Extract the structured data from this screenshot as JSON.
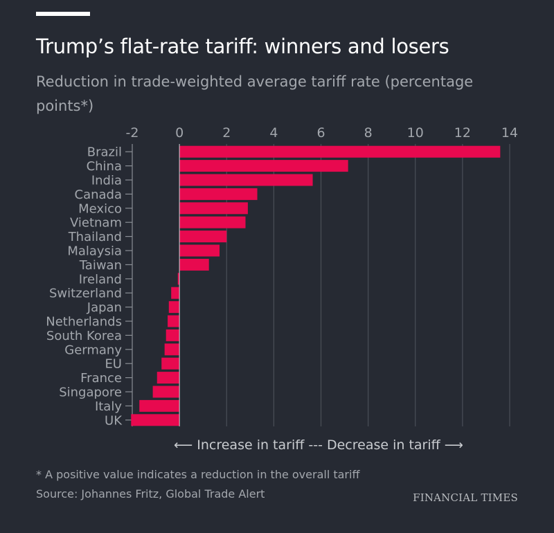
{
  "title": "Trump’s flat-rate tariff: winners and losers",
  "subtitle": "Reduction in trade-weighted average tariff rate (percentage points*)",
  "direction_label": "⟵  Increase in tariff --- Decrease in tariff  ⟶",
  "footnote": "* A positive value indicates a reduction in the overall tariff",
  "source": "Source: Johannes Fritz, Global Trade Alert",
  "logo": "FINANCIAL TIMES",
  "colors": {
    "background": "#262a33",
    "bar": "#e8094f",
    "text": "#a3a7ad",
    "grid": "#4a4f58"
  },
  "chart_data": {
    "type": "bar",
    "orientation": "horizontal",
    "title": "Trump’s flat-rate tariff: winners and losers",
    "xlabel": "Reduction in trade-weighted average tariff rate (percentage points*)",
    "xlim": [
      -2,
      14
    ],
    "xticks": [
      "-2",
      "0",
      "2",
      "4",
      "6",
      "8",
      "10",
      "12",
      "14"
    ],
    "grid": true,
    "categories": [
      "Brazil",
      "China",
      "India",
      "Canada",
      "Mexico",
      "Vietnam",
      "Thailand",
      "Malaysia",
      "Taiwan",
      "Ireland",
      "Switzerland",
      "Japan",
      "Netherlands",
      "South Korea",
      "Germany",
      "EU",
      "France",
      "Singapore",
      "Italy",
      "UK"
    ],
    "values": [
      13.6,
      7.15,
      5.65,
      3.3,
      2.9,
      2.8,
      2.0,
      1.7,
      1.25,
      -0.07,
      -0.35,
      -0.45,
      -0.5,
      -0.57,
      -0.63,
      -0.76,
      -0.95,
      -1.13,
      -1.7,
      -2.05
    ]
  }
}
